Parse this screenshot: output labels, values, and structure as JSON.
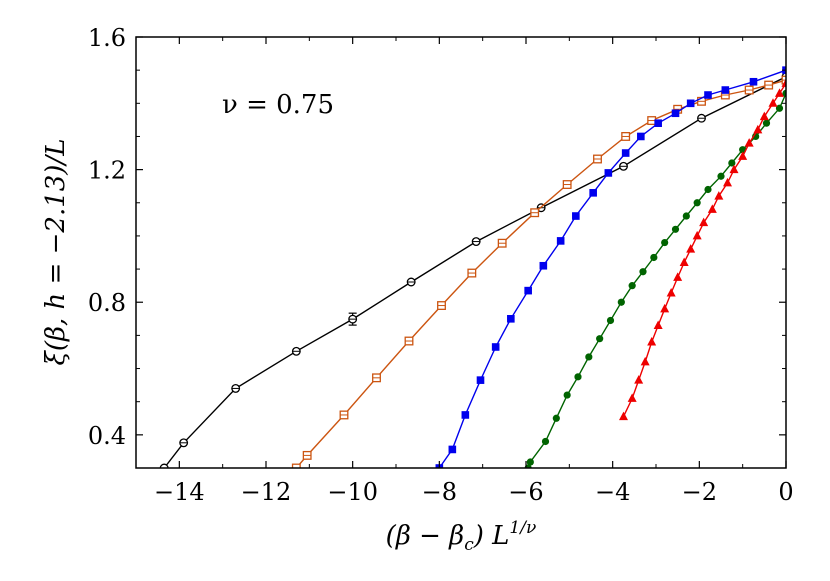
{
  "chart_data": {
    "type": "line",
    "xlabel": "(β − βc) L1/ν",
    "xlabel_parts": {
      "open": "(β − β",
      "sub": "c",
      "close": ") L",
      "sup": "1/ν"
    },
    "ylabel": "ξ(β, h = −2.13)/L",
    "xlim": [
      -15,
      0
    ],
    "ylim": [
      0.3,
      1.6
    ],
    "x_ticks": [
      -14,
      -12,
      -10,
      -8,
      -6,
      -4,
      -2,
      0
    ],
    "x_tick_labels": [
      "−14",
      "−12",
      "−10",
      "−8",
      "−6",
      "−4",
      "−2",
      "0"
    ],
    "y_ticks": [
      0.4,
      0.8,
      1.2,
      1.6
    ],
    "y_tick_labels": [
      "0.4",
      "0.8",
      "1.2",
      "1.6"
    ],
    "annotation": "ν = 0.75",
    "grid": false,
    "series": [
      {
        "color": "#000000",
        "marker": "open-circle",
        "x": [
          -14.35,
          -13.9,
          -12.7,
          -11.3,
          -10.0,
          -8.65,
          -7.15,
          -5.65,
          -3.75,
          -1.95,
          0.0
        ],
        "y": [
          0.3,
          0.376,
          0.54,
          0.652,
          0.749,
          0.861,
          0.983,
          1.085,
          1.21,
          1.355,
          1.48
        ],
        "err": [
          0,
          0.004,
          0.005,
          0.005,
          0.018,
          0.005,
          0.005,
          0.005,
          0.005,
          0.005,
          0.006
        ]
      },
      {
        "color": "#cc5511",
        "marker": "open-square",
        "x": [
          -11.3,
          -11.05,
          -10.2,
          -9.45,
          -8.7,
          -7.95,
          -7.25,
          -6.55,
          -5.8,
          -5.05,
          -4.35,
          -3.7,
          -3.1,
          -2.5,
          -1.95,
          -1.4,
          -0.85,
          -0.4,
          0.0
        ],
        "y": [
          0.3,
          0.338,
          0.46,
          0.572,
          0.683,
          0.79,
          0.888,
          0.978,
          1.07,
          1.155,
          1.232,
          1.3,
          1.348,
          1.382,
          1.406,
          1.425,
          1.44,
          1.455,
          1.47
        ],
        "err": [
          0,
          0.006,
          0.006,
          0.006,
          0.006,
          0.006,
          0.006,
          0.006,
          0.006,
          0.006,
          0.006,
          0.006,
          0.006,
          0.006,
          0.006,
          0.006,
          0.006,
          0.006,
          0.006
        ]
      },
      {
        "color": "#0000ee",
        "marker": "filled-square",
        "x": [
          -8.0,
          -7.7,
          -7.4,
          -7.05,
          -6.7,
          -6.35,
          -5.95,
          -5.6,
          -5.2,
          -4.85,
          -4.45,
          -4.1,
          -3.7,
          -3.35,
          -2.95,
          -2.55,
          -2.2,
          -1.8,
          -1.4,
          -0.75,
          0.0
        ],
        "y": [
          0.3,
          0.356,
          0.46,
          0.565,
          0.665,
          0.75,
          0.835,
          0.91,
          0.985,
          1.06,
          1.13,
          1.19,
          1.25,
          1.3,
          1.34,
          1.37,
          1.4,
          1.425,
          1.44,
          1.465,
          1.5
        ],
        "err": []
      },
      {
        "color": "#006400",
        "marker": "filled-circle",
        "x": [
          -5.95,
          -5.9,
          -5.55,
          -5.3,
          -5.05,
          -4.8,
          -4.55,
          -4.3,
          -4.05,
          -3.8,
          -3.55,
          -3.3,
          -3.05,
          -2.8,
          -2.55,
          -2.3,
          -2.05,
          -1.8,
          -1.5,
          -1.25,
          -1.0,
          -0.7,
          -0.45,
          -0.15,
          0.0
        ],
        "y": [
          0.3,
          0.318,
          0.38,
          0.45,
          0.52,
          0.575,
          0.635,
          0.69,
          0.745,
          0.8,
          0.85,
          0.892,
          0.935,
          0.98,
          1.02,
          1.06,
          1.1,
          1.14,
          1.18,
          1.22,
          1.26,
          1.3,
          1.34,
          1.385,
          1.43
        ]
      },
      {
        "color": "#ee0000",
        "marker": "filled-triangle",
        "x": [
          -3.75,
          -3.55,
          -3.4,
          -3.25,
          -3.1,
          -2.95,
          -2.8,
          -2.65,
          -2.5,
          -2.35,
          -2.2,
          -2.05,
          -1.9,
          -1.7,
          -1.55,
          -1.35,
          -1.2,
          -1.0,
          -0.85,
          -0.65,
          -0.5,
          -0.3,
          -0.15,
          0.0
        ],
        "y": [
          0.455,
          0.51,
          0.565,
          0.62,
          0.68,
          0.73,
          0.78,
          0.828,
          0.875,
          0.92,
          0.96,
          1.0,
          1.04,
          1.08,
          1.12,
          1.16,
          1.2,
          1.24,
          1.28,
          1.32,
          1.36,
          1.4,
          1.43,
          1.46
        ]
      }
    ]
  }
}
